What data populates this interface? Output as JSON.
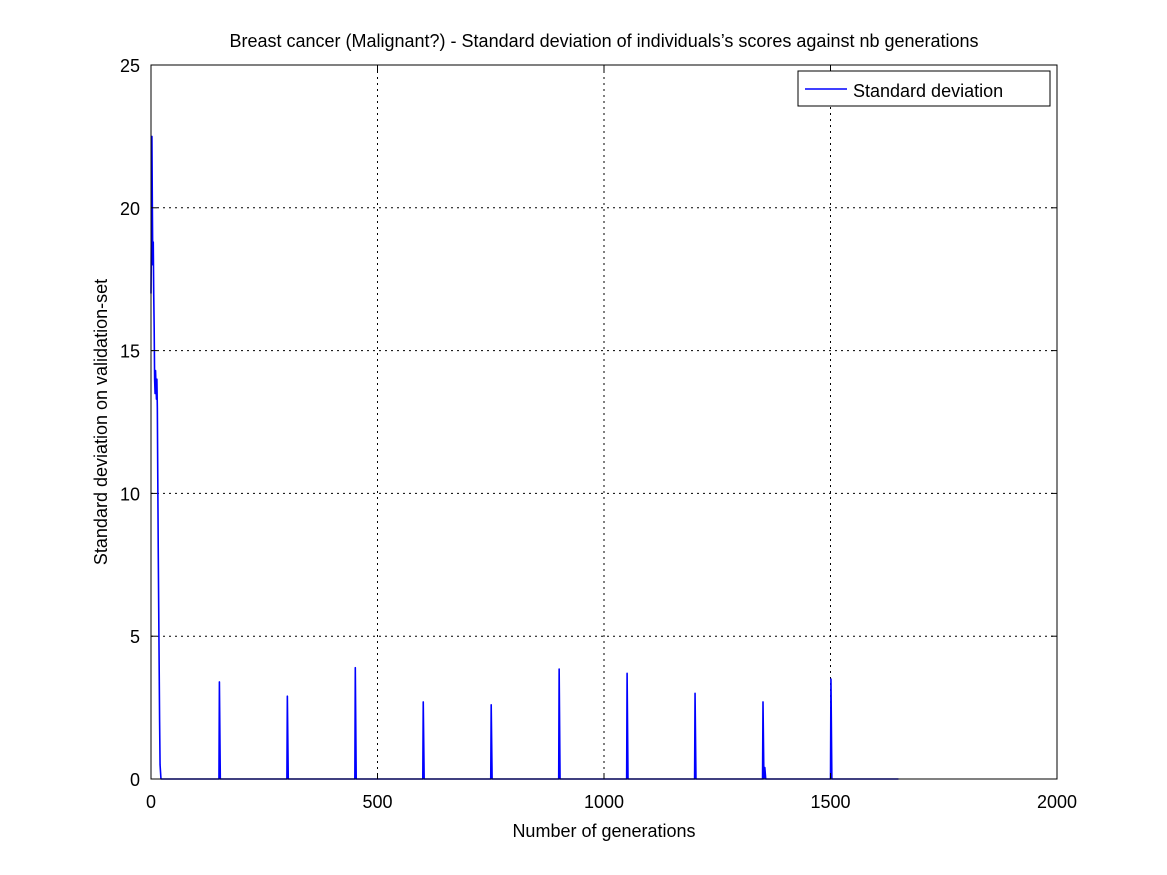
{
  "chart_data": {
    "type": "line",
    "title": "Breast cancer (Malignant?) - Standard deviation of individuals’s scores against nb generations",
    "xlabel": "Number of generations",
    "ylabel": "Standard deviation on validation-set",
    "xlim": [
      0,
      2000
    ],
    "ylim": [
      0,
      25
    ],
    "xticks": [
      0,
      500,
      1000,
      1500,
      2000
    ],
    "yticks": [
      0,
      5,
      10,
      15,
      20,
      25
    ],
    "grid": true,
    "legend": {
      "position": "top-right",
      "entries": [
        "Standard deviation"
      ]
    },
    "series": [
      {
        "name": "Standard deviation",
        "color": "#0000ff",
        "x": [
          0,
          1,
          2,
          3,
          4,
          5,
          6,
          7,
          8,
          9,
          10,
          11,
          12,
          13,
          14,
          15,
          16,
          17,
          18,
          19,
          20,
          22,
          24,
          150,
          151,
          153,
          300,
          301,
          303,
          450,
          451,
          453,
          600,
          601,
          603,
          750,
          751,
          753,
          900,
          901,
          903,
          1050,
          1051,
          1053,
          1200,
          1201,
          1203,
          1350,
          1351,
          1353,
          1355,
          1357,
          1500,
          1501,
          1503,
          1650
        ],
        "y": [
          17.0,
          19.5,
          22.5,
          20.0,
          18.0,
          18.8,
          17.0,
          15.8,
          14.0,
          13.5,
          14.3,
          13.8,
          13.3,
          14.0,
          13.0,
          10.5,
          8.0,
          6.0,
          4.0,
          2.0,
          0.5,
          0.0,
          0.0,
          0.0,
          3.4,
          0.0,
          0.0,
          2.9,
          0.0,
          0.0,
          3.9,
          0.0,
          0.0,
          2.7,
          0.0,
          0.0,
          2.6,
          0.0,
          0.0,
          3.85,
          0.0,
          0.0,
          3.7,
          0.0,
          0.0,
          3.0,
          0.0,
          0.0,
          2.7,
          0.0,
          0.4,
          0.0,
          0.0,
          3.5,
          0.0,
          0.0
        ]
      }
    ]
  }
}
